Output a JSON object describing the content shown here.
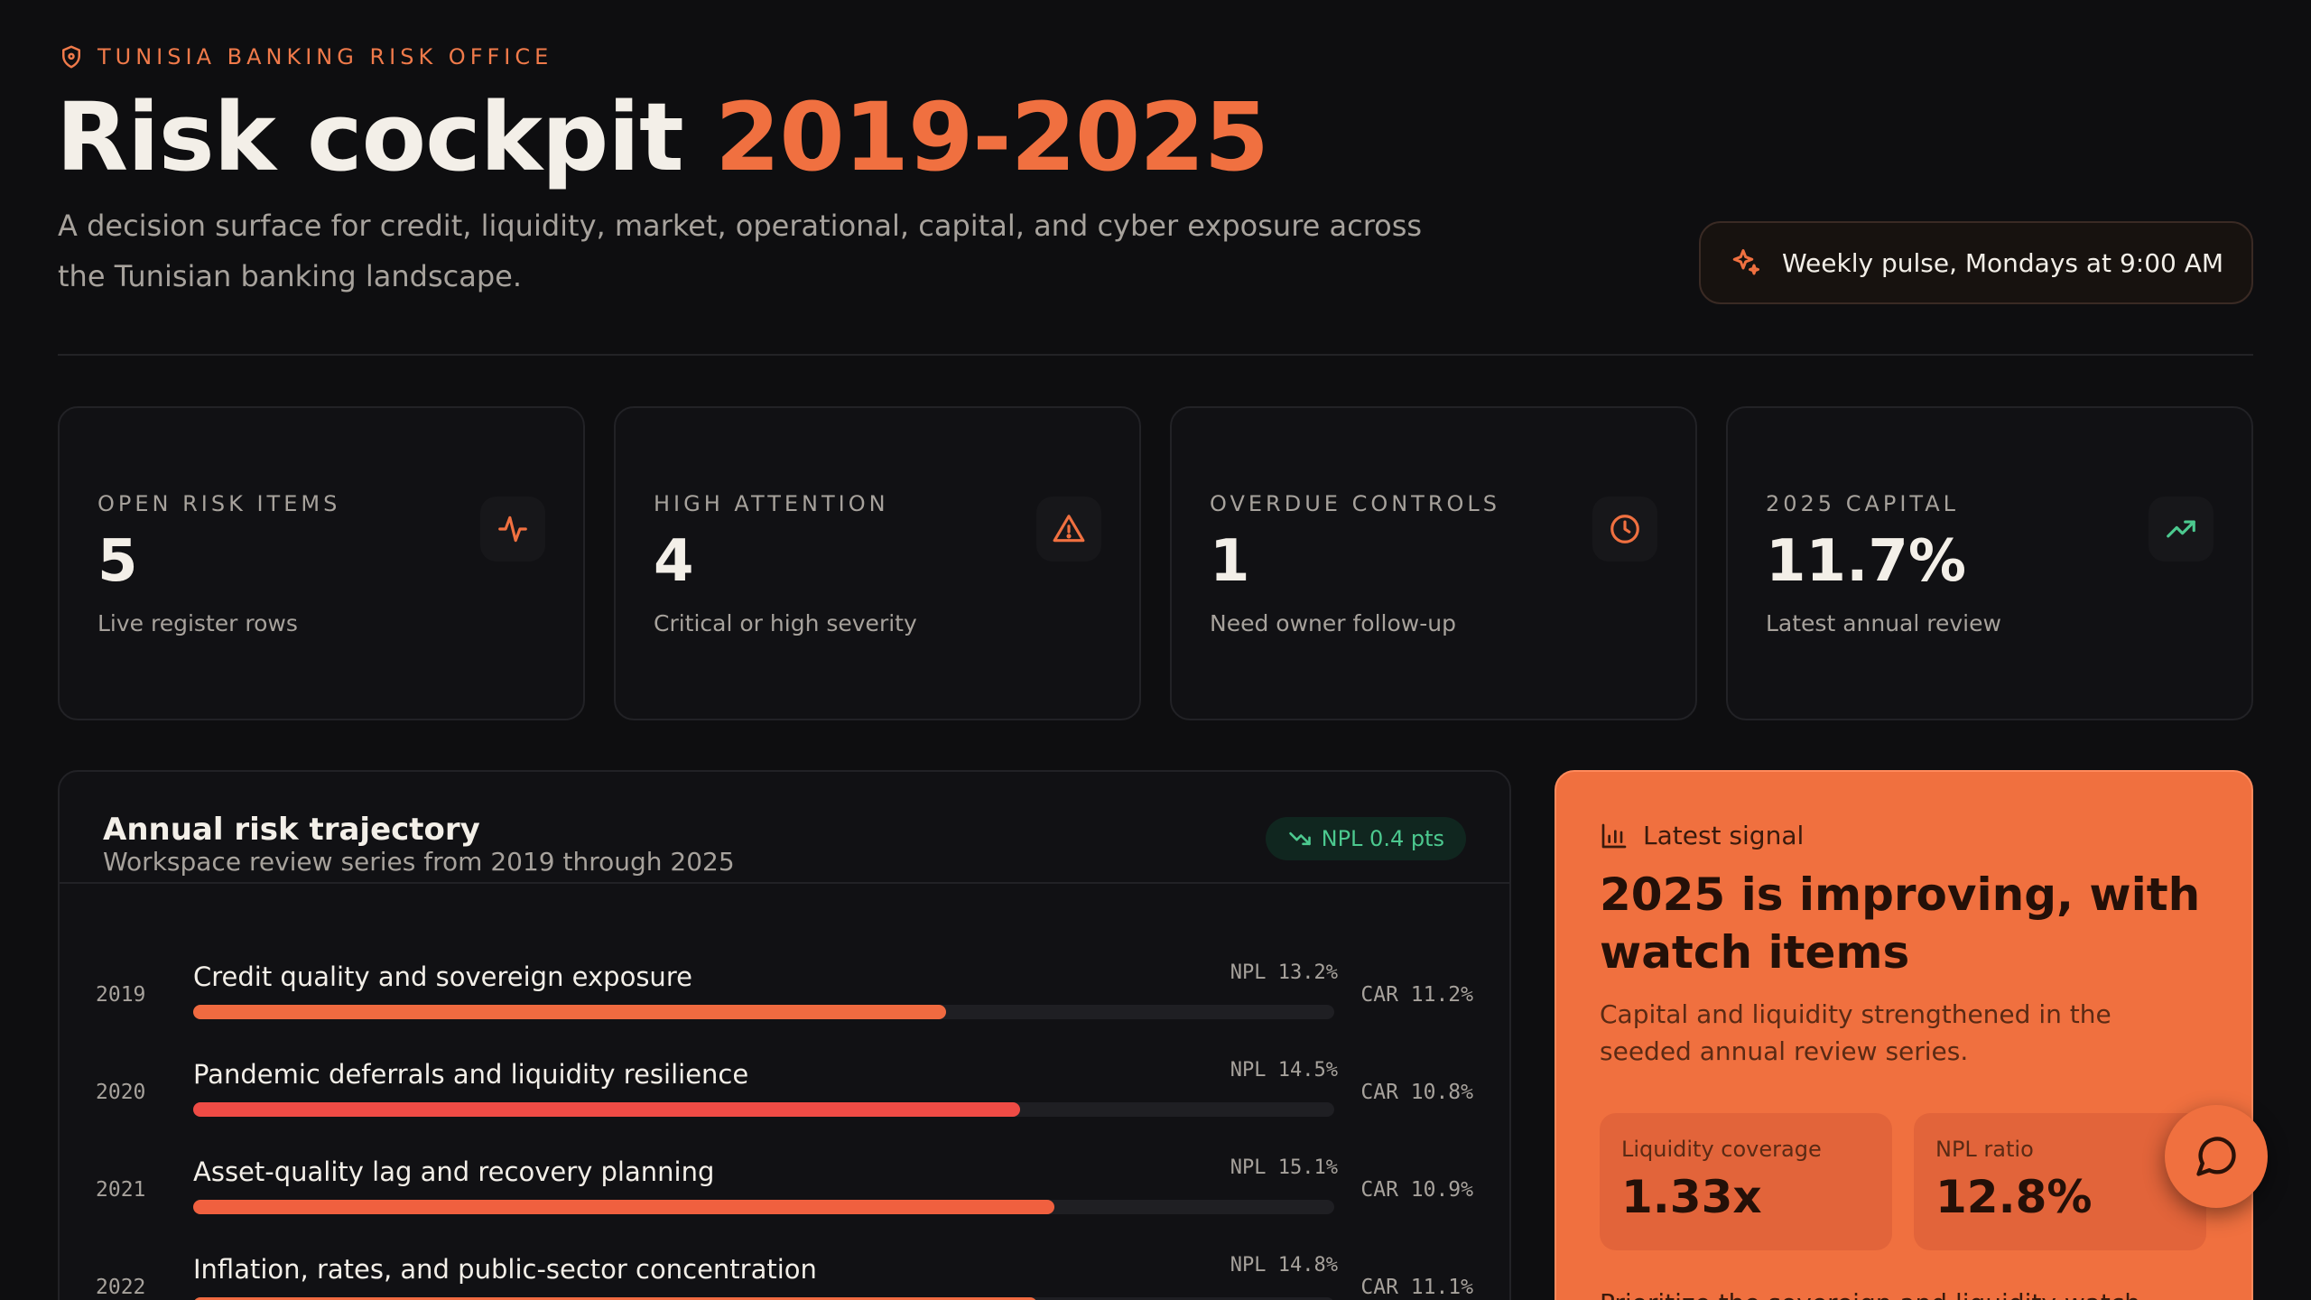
{
  "header": {
    "eyebrow": "TUNISIA BANKING RISK OFFICE",
    "title_main": "Risk cockpit",
    "title_accent": "2019-2025",
    "subtitle": "A decision surface for credit, liquidity, market, operational, capital, and cyber exposure across the Tunisian banking landscape.",
    "pulse_label": "Weekly pulse, Mondays at 9:00 AM"
  },
  "kpis": [
    {
      "label": "OPEN RISK ITEMS",
      "value": "5",
      "note": "Live register rows",
      "icon": "activity-icon",
      "icon_color": "#f07040"
    },
    {
      "label": "HIGH ATTENTION",
      "value": "4",
      "note": "Critical or high severity",
      "icon": "alert-triangle-icon",
      "icon_color": "#f07040"
    },
    {
      "label": "OVERDUE CONTROLS",
      "value": "1",
      "note": "Need owner follow-up",
      "icon": "clock-icon",
      "icon_color": "#f07040"
    },
    {
      "label": "2025 CAPITAL",
      "value": "11.7%",
      "note": "Latest annual review",
      "icon": "trending-up-icon",
      "icon_color": "#4cc98f"
    }
  ],
  "trajectory": {
    "title": "Annual risk trajectory",
    "subtitle": "Workspace review series from 2019 through 2025",
    "badge": "NPL 0.4 pts",
    "rows": [
      {
        "year": "2019",
        "label": "Credit quality and sovereign exposure",
        "npl": "NPL 13.2%",
        "car": "CAR 11.2%",
        "progress": 0.66,
        "color": "#f06a40"
      },
      {
        "year": "2020",
        "label": "Pandemic deferrals and liquidity resilience",
        "npl": "NPL 14.5%",
        "car": "CAR 10.8%",
        "progress": 0.725,
        "color": "#ef4b45"
      },
      {
        "year": "2021",
        "label": "Asset-quality lag and recovery planning",
        "npl": "NPL 15.1%",
        "car": "CAR 10.9%",
        "progress": 0.755,
        "color": "#f0603f"
      },
      {
        "year": "2022",
        "label": "Inflation, rates, and public-sector concentration",
        "npl": "NPL 14.8%",
        "car": "CAR 11.1%",
        "progress": 0.74,
        "color": "#f06a40"
      }
    ]
  },
  "signal": {
    "kicker": "Latest signal",
    "title": "2025 is improving, with watch items",
    "text": "Capital and liquidity strengthened in the seeded annual review series.",
    "stats": [
      {
        "label": "Liquidity coverage",
        "value": "1.33x"
      },
      {
        "label": "NPL ratio",
        "value": "12.8%"
      }
    ],
    "footer": "Prioritize the sovereign and liquidity watch"
  },
  "colors": {
    "accent": "#f07040",
    "positive": "#4cc98f",
    "background": "#0e0e10"
  }
}
